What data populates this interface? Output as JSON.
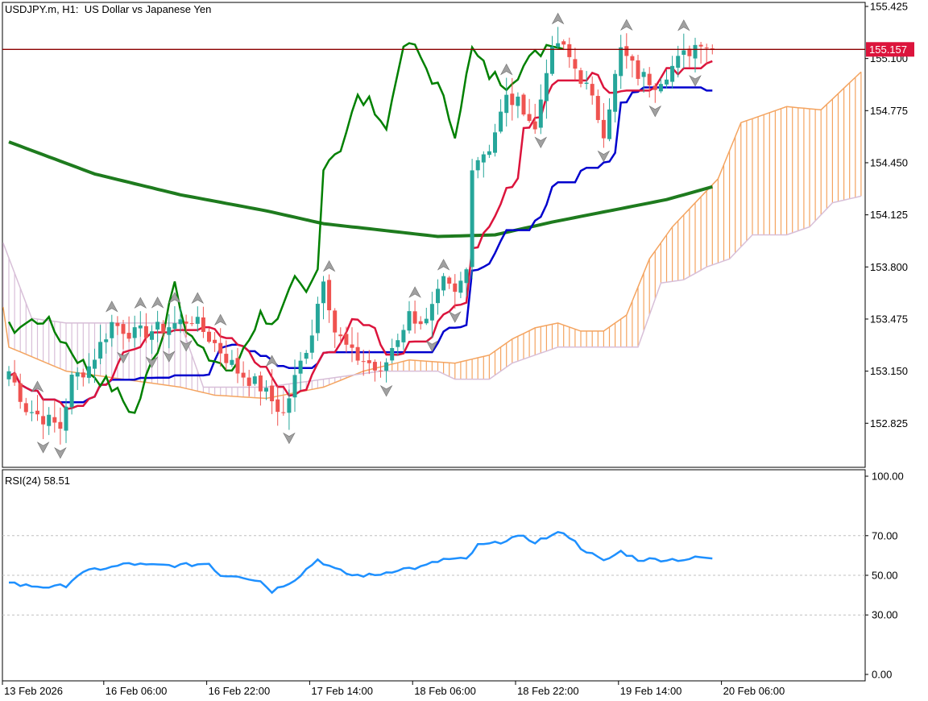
{
  "header": {
    "symbol": "USDJPY.m",
    "timeframe": "H1",
    "description": "US Dollar vs Japanese Yen"
  },
  "colors": {
    "bull": "#26a69a",
    "bear": "#ef5350",
    "tenkan": "#dc143c",
    "kijun": "#0000cd",
    "chikou": "#008000",
    "ma": "#1e7b1e",
    "span_a": "#f4a460",
    "span_b": "#d8bfd8",
    "rsi": "#1e90ff",
    "price_line": "#8b0000",
    "price_badge": "#dc143c"
  },
  "chart_data": [
    {
      "type": "candlestick",
      "name": "USDJPY.m H1",
      "ylim": [
        152.55,
        155.45
      ],
      "y_ticks": [
        "155.425",
        "155.100",
        "154.775",
        "154.450",
        "154.125",
        "153.800",
        "153.475",
        "153.150",
        "152.825"
      ],
      "x_ticks": [
        "13 Feb 2026",
        "16 Feb 06:00",
        "16 Feb 22:00",
        "17 Feb 14:00",
        "18 Feb 06:00",
        "18 Feb 22:00",
        "19 Feb 14:00",
        "20 Feb 06:00"
      ],
      "current_price": "155.157",
      "indicators": [
        "Ichimoku Kinko Hyo",
        "Moving Average",
        "Fractals"
      ]
    },
    {
      "type": "line",
      "name": "RSI(24)",
      "label": "RSI(24) 58.51",
      "ylim": [
        0,
        100
      ],
      "y_ticks": [
        "100.00",
        "70.00",
        "50.00",
        "30.00",
        "0.00"
      ],
      "levels": [
        70,
        50,
        30
      ],
      "last_value": 58.51
    }
  ]
}
